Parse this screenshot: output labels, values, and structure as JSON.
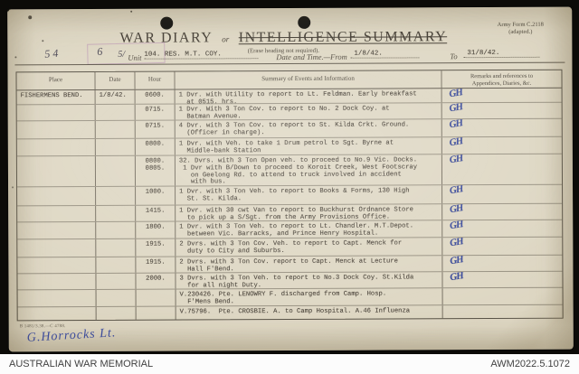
{
  "archive": {
    "label": "AUSTRALIAN WAR MEMORIAL",
    "reference": "AWM2022.5.1072"
  },
  "form": {
    "title": "WAR DIARY",
    "title_conjunction": "or",
    "title_alternative": "INTELLIGENCE SUMMARY",
    "instruction": "(Erase heading not required).",
    "form_number": "Army Form C.2118",
    "form_number_note": "(adapted.)",
    "handwritten_left": "54",
    "handwritten_mid": "6",
    "handwritten_prefix": "5/",
    "unit_label": "Unit",
    "unit_value": "104. RES. M.T. COY.",
    "date_label": "Date and Time.—From",
    "date_from": "1/8/42.",
    "to_label": "To",
    "date_to": "31/8/42.",
    "print_code": "B 1481/3.38.—C 4788.",
    "signature": "G.Horrocks Lt."
  },
  "ink_color": "#35479d",
  "paper_color": "#ded7c3",
  "table": {
    "headers": {
      "place": "Place",
      "date": "Date",
      "hour": "Hour",
      "summary": "Summary of Events and Information",
      "remarks_line1": "Remarks and references to",
      "remarks_line2": "Appendices, Diaries, &c."
    },
    "rows": [
      {
        "place": "FISHERMENS BEND.",
        "date": "1/8/42.",
        "hours": [
          "0600."
        ],
        "lines": [
          "1 Dvr. with Utility to report to Lt. Feldman. Early breakfast",
          "  at 0515. hrs."
        ],
        "remark": "GH"
      },
      {
        "place": "",
        "date": "",
        "hours": [
          "0715."
        ],
        "lines": [
          "1 Dvr. With 3 Ton Cov. to report to No. 2 Dock Coy. at",
          "  Batman Avenue."
        ],
        "remark": "GH"
      },
      {
        "place": "",
        "date": "",
        "hours": [
          "0715."
        ],
        "lines": [
          "4 Dvr. with 3 Ton Cov. to report to St. Kilda Crkt. Ground.",
          "  (Officer in charge)."
        ],
        "remark": "GH"
      },
      {
        "place": "",
        "date": "",
        "hours": [
          "0800."
        ],
        "lines": [
          "1 Dvr. with Veh. to take 1 Drum petrol to Sgt. Byrne at",
          "  Middle-bank Station"
        ],
        "remark": "GH"
      },
      {
        "place": "",
        "date": "",
        "hours": [
          "0800.",
          "0805."
        ],
        "lines": [
          "32. Dvrs. with 3 Ton Open veh. to proceed to No.9 Vic. Docks.",
          " 1 Dvr with B/Down to proceed to Koroit Creek, West Footscray",
          "   on Geelong Rd. to attend to truck involved in accident",
          "   with bus."
        ],
        "remark": "GH"
      },
      {
        "place": "",
        "date": "",
        "hours": [
          "1000."
        ],
        "lines": [
          "1 Dvr. with 3 Ton Veh. to report to Books & Forms, 130 High",
          "  St. St. Kilda."
        ],
        "remark": "GH"
      },
      {
        "place": "",
        "date": "",
        "hours": [
          "1415."
        ],
        "lines": [
          "1 Dvr. with 30 cwt Van to report to Buckhurst Ordnance Store",
          "  to pick up a S/Sgt. from the Army Provisions Office."
        ],
        "remark": "GH"
      },
      {
        "place": "",
        "date": "",
        "hours": [
          "1800."
        ],
        "lines": [
          "1 Dvr. with 3 Ton Veh. to report to Lt. Chandler. M.T.Depot.",
          "  between Vic. Barracks, and Prince Henry Hospital."
        ],
        "remark": "GH"
      },
      {
        "place": "",
        "date": "",
        "hours": [
          "1915."
        ],
        "lines": [
          "2 Dvrs. with 3 Ton Cov. Veh. to report to Capt. Menck for",
          "  duty to City and Suburbs."
        ],
        "remark": "GH"
      },
      {
        "place": "",
        "date": "",
        "hours": [
          "1915."
        ],
        "lines": [
          "2 Dvrs. with 3 Ton Cov. report to Capt. Menck at Lecture",
          "  Hall F'Bend."
        ],
        "remark": "GH"
      },
      {
        "place": "",
        "date": "",
        "hours": [
          "2000."
        ],
        "lines": [
          "3 Dvrs. with 3 Ton Veh. to report to No.3 Dock Coy. St.Kilda",
          "  for all night Duty."
        ],
        "remark": "GH"
      },
      {
        "place": "",
        "date": "",
        "hours": [],
        "lines": [
          "V.230426. Pte. LENOWRY F. discharged from Camp. Hosp.",
          "  F'Mens Bend."
        ],
        "remark": ""
      },
      {
        "place": "",
        "date": "",
        "hours": [],
        "lines": [
          "V.75796.  Pte. CROSBIE. A. to Camp Hospital. A.46 Influenza"
        ],
        "remark": ""
      }
    ]
  }
}
